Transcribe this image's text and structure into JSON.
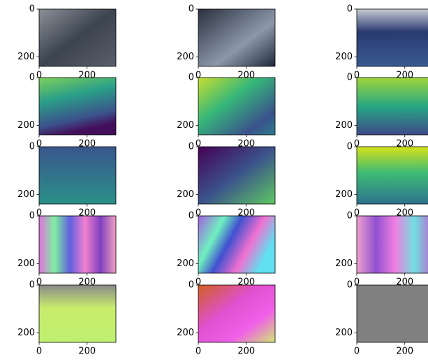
{
  "chart_data": [
    {
      "type": "image",
      "xlim": [
        0,
        320
      ],
      "ylim": [
        240,
        0
      ],
      "xticks": [
        0,
        200
      ],
      "yticks": [
        0,
        200
      ]
    },
    {
      "type": "image",
      "xlim": [
        0,
        320
      ],
      "ylim": [
        240,
        0
      ],
      "xticks": [
        0,
        200
      ],
      "yticks": [
        0,
        200
      ]
    },
    {
      "type": "image",
      "xlim": [
        0,
        320
      ],
      "ylim": [
        240,
        0
      ],
      "xticks": [
        0,
        200
      ],
      "yticks": [
        0,
        200
      ]
    },
    {
      "type": "image",
      "xlim": [
        0,
        320
      ],
      "ylim": [
        240,
        0
      ],
      "xticks": [
        0,
        200
      ],
      "yticks": [
        0,
        200
      ]
    },
    {
      "type": "image",
      "xlim": [
        0,
        320
      ],
      "ylim": [
        240,
        0
      ],
      "xticks": [
        0,
        200
      ],
      "yticks": [
        0,
        200
      ]
    },
    {
      "type": "image",
      "xlim": [
        0,
        320
      ],
      "ylim": [
        240,
        0
      ],
      "xticks": [
        0,
        200
      ],
      "yticks": [
        0,
        200
      ]
    },
    {
      "type": "image",
      "xlim": [
        0,
        320
      ],
      "ylim": [
        240,
        0
      ],
      "xticks": [
        0,
        200
      ],
      "yticks": [
        0,
        200
      ]
    },
    {
      "type": "image",
      "xlim": [
        0,
        320
      ],
      "ylim": [
        240,
        0
      ],
      "xticks": [
        0,
        200
      ],
      "yticks": [
        0,
        200
      ]
    },
    {
      "type": "image",
      "xlim": [
        0,
        320
      ],
      "ylim": [
        240,
        0
      ],
      "xticks": [
        0,
        200
      ],
      "yticks": [
        0,
        200
      ]
    },
    {
      "type": "image",
      "xlim": [
        0,
        320
      ],
      "ylim": [
        240,
        0
      ],
      "xticks": [
        0,
        200
      ],
      "yticks": [
        0,
        200
      ]
    },
    {
      "type": "image",
      "xlim": [
        0,
        320
      ],
      "ylim": [
        240,
        0
      ],
      "xticks": [
        0,
        200
      ],
      "yticks": [
        0,
        200
      ]
    },
    {
      "type": "image",
      "xlim": [
        0,
        320
      ],
      "ylim": [
        240,
        0
      ],
      "xticks": [
        0,
        200
      ],
      "yticks": [
        0,
        200
      ]
    },
    {
      "type": "image",
      "xlim": [
        0,
        320
      ],
      "ylim": [
        240,
        0
      ],
      "xticks": [
        0,
        200
      ],
      "yticks": [
        0,
        200
      ]
    },
    {
      "type": "image",
      "xlim": [
        0,
        320
      ],
      "ylim": [
        240,
        0
      ],
      "xticks": [
        0,
        200
      ],
      "yticks": [
        0,
        200
      ]
    },
    {
      "type": "image",
      "xlim": [
        0,
        320
      ],
      "ylim": [
        240,
        0
      ],
      "xticks": [
        0,
        200
      ],
      "yticks": [
        0,
        200
      ]
    }
  ]
}
